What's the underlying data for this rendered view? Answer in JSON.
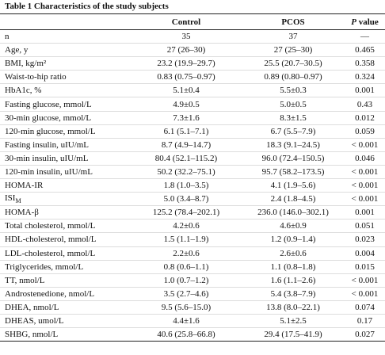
{
  "table": {
    "title": "Table 1 Characteristics of the study subjects",
    "headers": [
      "Control",
      "PCOS",
      "P value"
    ],
    "rows": [
      [
        "n",
        "35",
        "37",
        "—"
      ],
      [
        "Age, y",
        "27 (26–30)",
        "27 (25–30)",
        "0.465"
      ],
      [
        "BMI, kg/m²",
        "23.2 (19.9–29.7)",
        "25.5 (20.7–30.5)",
        "0.358"
      ],
      [
        "Waist-to-hip ratio",
        "0.83 (0.75–0.97)",
        "0.89 (0.80–0.97)",
        "0.324"
      ],
      [
        "HbA1c, %",
        "5.1±0.4",
        "5.5±0.3",
        "0.001"
      ],
      [
        "Fasting glucose, mmol/L",
        "4.9±0.5",
        "5.0±0.5",
        "0.43"
      ],
      [
        "30-min glucose, mmol/L",
        "7.3±1.6",
        "8.3±1.5",
        "0.012"
      ],
      [
        "120-min glucose, mmol/L",
        "6.1 (5.1–7.1)",
        "6.7 (5.5–7.9)",
        "0.059"
      ],
      [
        "Fasting insulin, uIU/mL",
        "8.7 (4.9–14.7)",
        "18.3 (9.1–24.5)",
        "< 0.001"
      ],
      [
        "30-min insulin, uIU/mL",
        "80.4 (52.1–115.2)",
        "96.0 (72.4–150.5)",
        "0.046"
      ],
      [
        "120-min insulin, uIU/mL",
        "50.2 (32.2–75.1)",
        "95.7 (58.2–173.5)",
        "< 0.001"
      ],
      [
        "HOMA-IR",
        "1.8 (1.0–3.5)",
        "4.1 (1.9–5.6)",
        "< 0.001"
      ],
      [
        {
          "text": "ISI",
          "sub": "M"
        },
        "5.0 (3.4–8.7)",
        "2.4 (1.8–4.5)",
        "< 0.001"
      ],
      [
        "HOMA-β",
        "125.2 (78.4–202.1)",
        "236.0 (146.0–302.1)",
        "0.001"
      ],
      [
        "Total cholesterol, mmol/L",
        "4.2±0.6",
        "4.6±0.9",
        "0.051"
      ],
      [
        "HDL-cholesterol, mmol/L",
        "1.5 (1.1–1.9)",
        "1.2 (0.9–1.4)",
        "0.023"
      ],
      [
        "LDL-cholesterol, mmol/L",
        "2.2±0.6",
        "2.6±0.6",
        "0.004"
      ],
      [
        "Triglycerides, mmol/L",
        "0.8 (0.6–1.1)",
        "1.1 (0.8–1.8)",
        "0.015"
      ],
      [
        "TT, nmol/L",
        "1.0 (0.7–1.2)",
        "1.6 (1.1–2.6)",
        "< 0.001"
      ],
      [
        "Androstenedione, nmol/L",
        "3.5 (2.7–4.6)",
        "5.4 (3.8–7.9)",
        "< 0.001"
      ],
      [
        "DHEA, nmol/L",
        "9.5 (5.6–15.0)",
        "13.8 (8.0–22.1)",
        "0.074"
      ],
      [
        "DHEAS, umol/L",
        "4.4±1.6",
        "5.1±2.5",
        "0.17"
      ],
      [
        "SHBG, nmol/L",
        "40.6 (25.8–66.8)",
        "29.4 (17.5–41.9)",
        "0.027"
      ]
    ]
  }
}
